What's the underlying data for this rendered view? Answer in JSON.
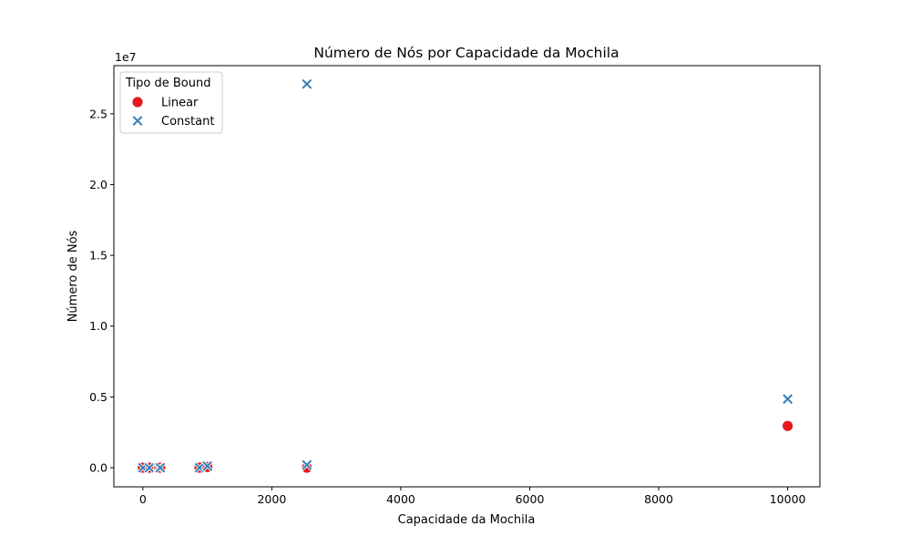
{
  "chart_data": {
    "type": "scatter",
    "title": "Número de Nós por Capacidade da Mochila",
    "xlabel": "Capacidade da Mochila",
    "ylabel": "Número de Nós",
    "y_offset_text": "1e7",
    "xlim": [
      -450,
      10500
    ],
    "ylim": [
      -1350000,
      28400000
    ],
    "x_ticks": [
      0,
      2000,
      4000,
      6000,
      8000,
      10000
    ],
    "x_tick_labels": [
      "0",
      "2000",
      "4000",
      "6000",
      "8000",
      "10000"
    ],
    "y_ticks": [
      0,
      5000000,
      10000000,
      15000000,
      20000000,
      25000000
    ],
    "y_tick_labels": [
      "0.0",
      "0.5",
      "1.0",
      "1.5",
      "2.0",
      "2.5"
    ],
    "grid": false,
    "legend": {
      "title": "Tipo de Bound",
      "position": "top-left"
    },
    "series": [
      {
        "name": "Linear",
        "marker": "circle",
        "color": "#e41a1c",
        "points": [
          {
            "x": 0,
            "y": 0
          },
          {
            "x": 100,
            "y": 0
          },
          {
            "x": 250,
            "y": 0
          },
          {
            "x": 269,
            "y": 0
          },
          {
            "x": 878,
            "y": 0
          },
          {
            "x": 1000,
            "y": 50000
          },
          {
            "x": 2543,
            "y": 0
          },
          {
            "x": 10000,
            "y": 2950000
          }
        ]
      },
      {
        "name": "Constant",
        "marker": "x",
        "color": "#377eb8",
        "points": [
          {
            "x": 0,
            "y": 0
          },
          {
            "x": 100,
            "y": 0
          },
          {
            "x": 250,
            "y": 0
          },
          {
            "x": 269,
            "y": 0
          },
          {
            "x": 878,
            "y": 0
          },
          {
            "x": 1000,
            "y": 120000
          },
          {
            "x": 2543,
            "y": 200000
          },
          {
            "x": 2543,
            "y": 27100000
          },
          {
            "x": 10000,
            "y": 4850000
          }
        ]
      }
    ]
  }
}
